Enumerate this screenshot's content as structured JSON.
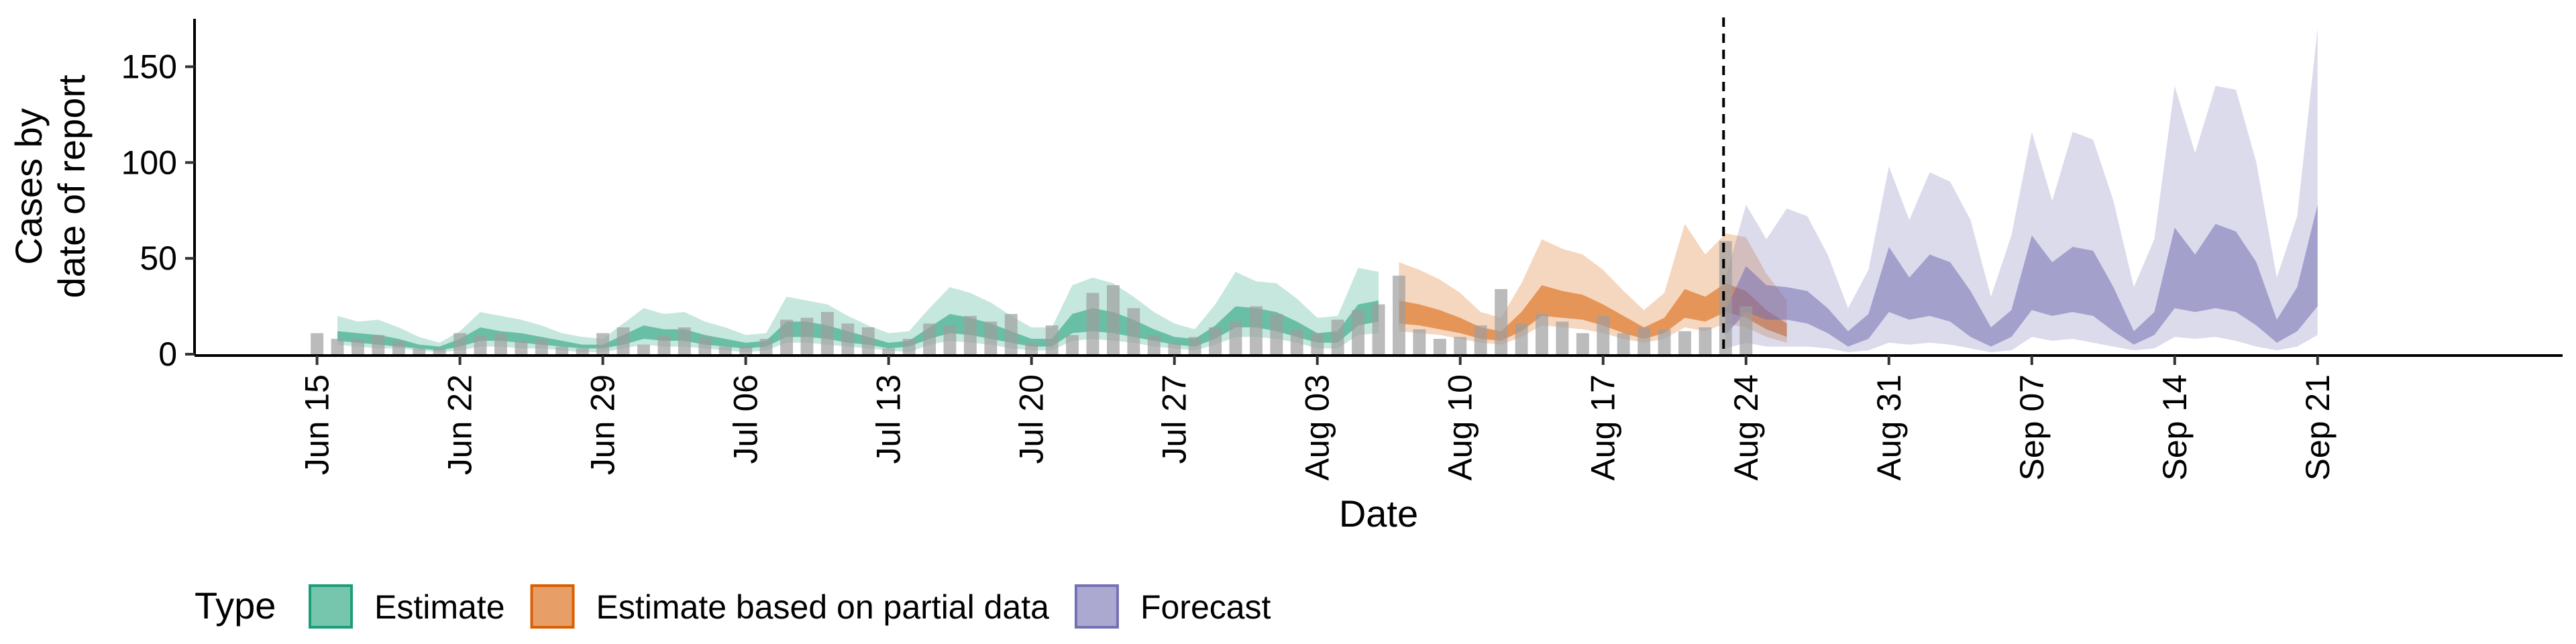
{
  "chart_data": {
    "type": "area",
    "xlabel": "Date",
    "ylabel_lines": [
      "Cases by",
      "date of report"
    ],
    "ylim": [
      0,
      175
    ],
    "yticks": [
      0,
      50,
      100,
      150
    ],
    "x_start": "2020-06-15",
    "xlim_days": [
      -6,
      110
    ],
    "xticks": [
      {
        "day": 0,
        "label": "Jun 15"
      },
      {
        "day": 7,
        "label": "Jun 22"
      },
      {
        "day": 14,
        "label": "Jun 29"
      },
      {
        "day": 21,
        "label": "Jul 06"
      },
      {
        "day": 28,
        "label": "Jul 13"
      },
      {
        "day": 35,
        "label": "Jul 20"
      },
      {
        "day": 42,
        "label": "Jul 27"
      },
      {
        "day": 49,
        "label": "Aug 03"
      },
      {
        "day": 56,
        "label": "Aug 10"
      },
      {
        "day": 63,
        "label": "Aug 17"
      },
      {
        "day": 70,
        "label": "Aug 24"
      },
      {
        "day": 77,
        "label": "Aug 31"
      },
      {
        "day": 84,
        "label": "Sep 07"
      },
      {
        "day": 91,
        "label": "Sep 14"
      },
      {
        "day": 98,
        "label": "Sep 21"
      }
    ],
    "forecast_start_day": 68.9,
    "legend": {
      "title": "Type",
      "position": "bottom",
      "items": [
        {
          "label": "Estimate",
          "color": "#1B9E77"
        },
        {
          "label": "Estimate based on partial data",
          "color": "#D95F02"
        },
        {
          "label": "Forecast",
          "color": "#7570B3"
        }
      ]
    },
    "colors": {
      "Estimate": "#1B9E77",
      "Estimate based on partial data": "#D95F02",
      "Forecast": "#7570B3",
      "bars": "#9E9E9E"
    },
    "series": [
      {
        "name": "Estimate",
        "start_day": 1,
        "lower90": [
          5,
          4,
          3,
          3,
          2,
          1,
          2,
          4,
          4,
          3,
          3,
          2,
          1,
          1,
          3,
          5,
          4,
          4,
          3,
          2,
          1,
          2,
          6,
          6,
          5,
          4,
          3,
          2,
          1,
          5,
          7,
          6,
          5,
          3,
          2,
          2,
          7,
          8,
          7,
          6,
          4,
          3,
          2,
          5,
          9,
          9,
          8,
          6,
          3,
          3,
          10,
          11
        ],
        "lower50": [
          7,
          6,
          5,
          4,
          3,
          2,
          4,
          7,
          7,
          6,
          5,
          4,
          3,
          3,
          5,
          8,
          7,
          7,
          5,
          4,
          3,
          4,
          9,
          9,
          8,
          6,
          5,
          3,
          4,
          8,
          11,
          10,
          8,
          6,
          4,
          4,
          11,
          12,
          11,
          9,
          7,
          5,
          4,
          8,
          14,
          14,
          12,
          9,
          6,
          6,
          15,
          17
        ],
        "upper50": [
          12,
          11,
          10,
          8,
          5,
          4,
          8,
          14,
          12,
          11,
          9,
          7,
          5,
          5,
          10,
          15,
          13,
          13,
          10,
          8,
          6,
          7,
          17,
          17,
          15,
          12,
          9,
          6,
          7,
          14,
          21,
          19,
          16,
          12,
          8,
          8,
          21,
          24,
          22,
          18,
          13,
          9,
          8,
          15,
          25,
          24,
          22,
          17,
          11,
          12,
          26,
          28
        ],
        "upper90": [
          20,
          17,
          18,
          14,
          9,
          6,
          12,
          22,
          20,
          18,
          15,
          11,
          9,
          8,
          16,
          24,
          21,
          22,
          17,
          14,
          10,
          11,
          30,
          28,
          26,
          20,
          15,
          11,
          12,
          24,
          35,
          32,
          27,
          20,
          14,
          14,
          36,
          40,
          37,
          30,
          22,
          16,
          13,
          26,
          43,
          38,
          37,
          29,
          19,
          20,
          45,
          43
        ]
      },
      {
        "name": "Estimate based on partial data",
        "start_day": 53,
        "lower90": [
          12,
          11,
          10,
          8,
          6,
          5,
          9,
          15,
          14,
          13,
          11,
          8,
          6,
          8,
          14,
          12,
          16,
          14,
          9,
          6
        ],
        "lower50": [
          16,
          15,
          13,
          11,
          8,
          7,
          12,
          20,
          19,
          18,
          15,
          11,
          8,
          11,
          19,
          17,
          22,
          19,
          13,
          9
        ],
        "upper50": [
          28,
          26,
          23,
          19,
          14,
          12,
          22,
          36,
          33,
          31,
          26,
          20,
          14,
          19,
          34,
          30,
          37,
          33,
          23,
          16
        ],
        "upper90": [
          48,
          44,
          39,
          32,
          22,
          19,
          37,
          60,
          55,
          52,
          44,
          33,
          23,
          32,
          68,
          52,
          63,
          61,
          42,
          28
        ]
      },
      {
        "name": "Forecast",
        "start_day": 69,
        "lower90": [
          3,
          6,
          4,
          4,
          4,
          3,
          1,
          2,
          6,
          5,
          6,
          5,
          3,
          1,
          2,
          9,
          7,
          8,
          6,
          4,
          2,
          3,
          9,
          8,
          9,
          7,
          4,
          2,
          4,
          10
        ],
        "lower50": [
          10,
          22,
          18,
          18,
          16,
          11,
          4,
          8,
          22,
          18,
          20,
          17,
          9,
          4,
          9,
          23,
          20,
          22,
          20,
          12,
          5,
          10,
          24,
          22,
          24,
          22,
          15,
          6,
          12,
          25
        ],
        "upper50": [
          23,
          46,
          36,
          35,
          33,
          24,
          12,
          21,
          56,
          40,
          52,
          48,
          33,
          14,
          23,
          62,
          48,
          56,
          54,
          35,
          12,
          22,
          66,
          52,
          68,
          64,
          48,
          18,
          35,
          78
        ],
        "upper90": [
          40,
          78,
          60,
          76,
          72,
          52,
          24,
          44,
          98,
          70,
          95,
          90,
          70,
          30,
          62,
          116,
          80,
          116,
          112,
          80,
          35,
          60,
          140,
          105,
          140,
          138,
          100,
          40,
          72,
          170
        ]
      }
    ],
    "bars": {
      "start_day": 0,
      "values": [
        11,
        8,
        8,
        10,
        7,
        3,
        3,
        11,
        10,
        11,
        7,
        8,
        4,
        3,
        11,
        14,
        5,
        10,
        14,
        9,
        4,
        4,
        8,
        18,
        19,
        22,
        16,
        14,
        3,
        8,
        16,
        15,
        20,
        17,
        21,
        6,
        15,
        10,
        32,
        36,
        24,
        10,
        6,
        9,
        14,
        17,
        25,
        21,
        13,
        11,
        18,
        23,
        26,
        41,
        13,
        8,
        9,
        15,
        34,
        16,
        21,
        17,
        11,
        20,
        11,
        14,
        13,
        12,
        14,
        59,
        25
      ]
    }
  }
}
